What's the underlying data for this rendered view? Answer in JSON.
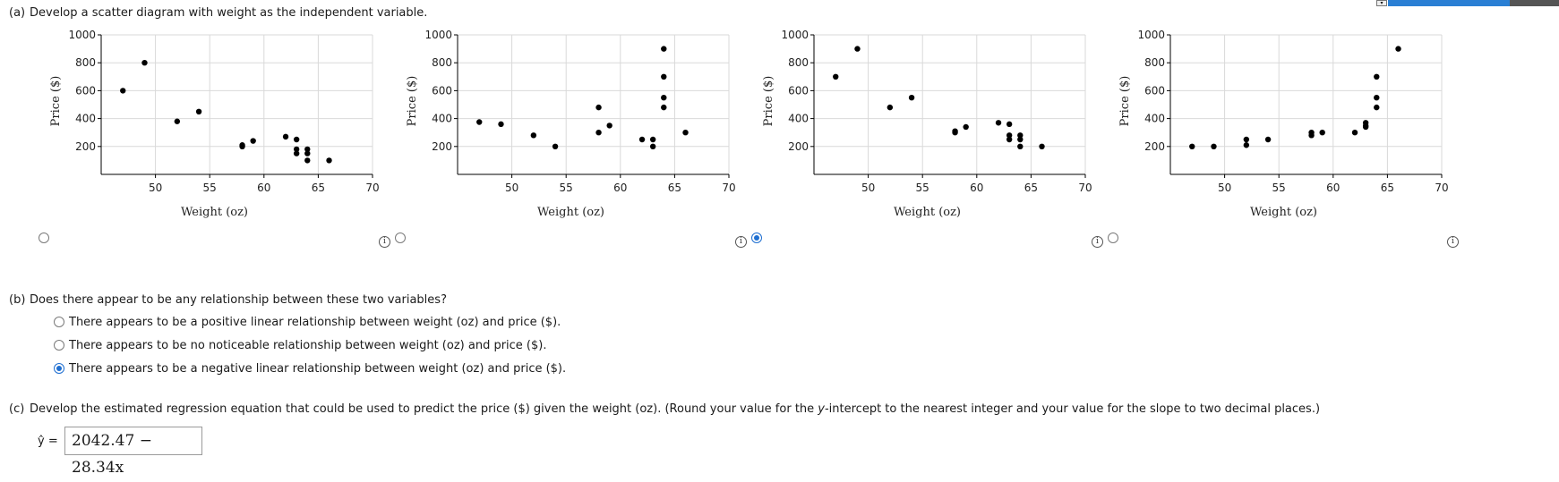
{
  "part_a": {
    "tag": "(a)",
    "question": "Develop a scatter diagram with weight as the independent variable."
  },
  "chart_data": [
    {
      "type": "scatter",
      "title": "",
      "xlabel": "Weight (oz)",
      "ylabel": "Price ($)",
      "xlim": [
        45,
        70
      ],
      "ylim": [
        0,
        1000
      ],
      "xticks": [
        "50",
        "55",
        "60",
        "65",
        "70"
      ],
      "yticks": [
        "200",
        "400",
        "600",
        "800",
        "1000"
      ],
      "points": [
        [
          47,
          600
        ],
        [
          49,
          800
        ],
        [
          52,
          380
        ],
        [
          54,
          450
        ],
        [
          58,
          200
        ],
        [
          58,
          210
        ],
        [
          59,
          240
        ],
        [
          62,
          270
        ],
        [
          63,
          250
        ],
        [
          63,
          180
        ],
        [
          63,
          150
        ],
        [
          64,
          180
        ],
        [
          64,
          150
        ],
        [
          64,
          100
        ],
        [
          66,
          100
        ]
      ]
    },
    {
      "type": "scatter",
      "title": "",
      "xlabel": "Weight (oz)",
      "ylabel": "Price ($)",
      "xlim": [
        45,
        70
      ],
      "ylim": [
        0,
        1000
      ],
      "xticks": [
        "50",
        "55",
        "60",
        "65",
        "70"
      ],
      "yticks": [
        "200",
        "400",
        "600",
        "800",
        "1000"
      ],
      "points": [
        [
          47,
          375
        ],
        [
          49,
          360
        ],
        [
          52,
          280
        ],
        [
          54,
          200
        ],
        [
          58,
          480
        ],
        [
          58,
          300
        ],
        [
          59,
          350
        ],
        [
          62,
          250
        ],
        [
          63,
          250
        ],
        [
          63,
          200
        ],
        [
          64,
          900
        ],
        [
          64,
          700
        ],
        [
          64,
          550
        ],
        [
          64,
          480
        ],
        [
          66,
          300
        ]
      ]
    },
    {
      "type": "scatter",
      "title": "",
      "xlabel": "Weight (oz)",
      "ylabel": "Price ($)",
      "xlim": [
        45,
        70
      ],
      "ylim": [
        0,
        1000
      ],
      "xticks": [
        "50",
        "55",
        "60",
        "65",
        "70"
      ],
      "yticks": [
        "200",
        "400",
        "600",
        "800",
        "1000"
      ],
      "points": [
        [
          47,
          700
        ],
        [
          49,
          900
        ],
        [
          52,
          480
        ],
        [
          54,
          550
        ],
        [
          58,
          300
        ],
        [
          58,
          310
        ],
        [
          59,
          340
        ],
        [
          62,
          370
        ],
        [
          63,
          360
        ],
        [
          63,
          280
        ],
        [
          63,
          250
        ],
        [
          64,
          280
        ],
        [
          64,
          250
        ],
        [
          64,
          200
        ],
        [
          66,
          200
        ]
      ]
    },
    {
      "type": "scatter",
      "title": "",
      "xlabel": "Weight (oz)",
      "ylabel": "Price ($)",
      "xlim": [
        45,
        70
      ],
      "ylim": [
        0,
        1000
      ],
      "xticks": [
        "50",
        "55",
        "60",
        "65",
        "70"
      ],
      "yticks": [
        "200",
        "400",
        "600",
        "800",
        "1000"
      ],
      "points": [
        [
          47,
          200
        ],
        [
          49,
          200
        ],
        [
          52,
          250
        ],
        [
          52,
          210
        ],
        [
          54,
          250
        ],
        [
          58,
          300
        ],
        [
          58,
          280
        ],
        [
          59,
          300
        ],
        [
          62,
          300
        ],
        [
          63,
          370
        ],
        [
          63,
          350
        ],
        [
          63,
          340
        ],
        [
          64,
          700
        ],
        [
          64,
          550
        ],
        [
          64,
          480
        ],
        [
          66,
          900
        ]
      ]
    }
  ],
  "part_b": {
    "tag": "(b)",
    "question": "Does there appear to be any relationship between these two variables?",
    "options": [
      "There appears to be a positive linear relationship between weight (oz) and price ($).",
      "There appears to be no noticeable relationship between weight (oz) and price ($).",
      "There appears to be a negative linear relationship between weight (oz) and price ($)."
    ],
    "selected_index": 2
  },
  "part_c": {
    "tag": "(c)",
    "question_start": "Develop the estimated regression equation that could be used to predict the price ($) given the weight (oz). (Round your value for the ",
    "question_italic": "y",
    "question_end": "-intercept to the nearest integer and your value for the slope to two decimal places.)",
    "yhat_label": "ŷ =",
    "answer": "2042.47 − 28.34x"
  },
  "info_glyph": "i",
  "colors": {
    "accent": "#1f6fd1",
    "grid": "#d9d9d9",
    "axis": "#000000",
    "point": "#000000"
  }
}
